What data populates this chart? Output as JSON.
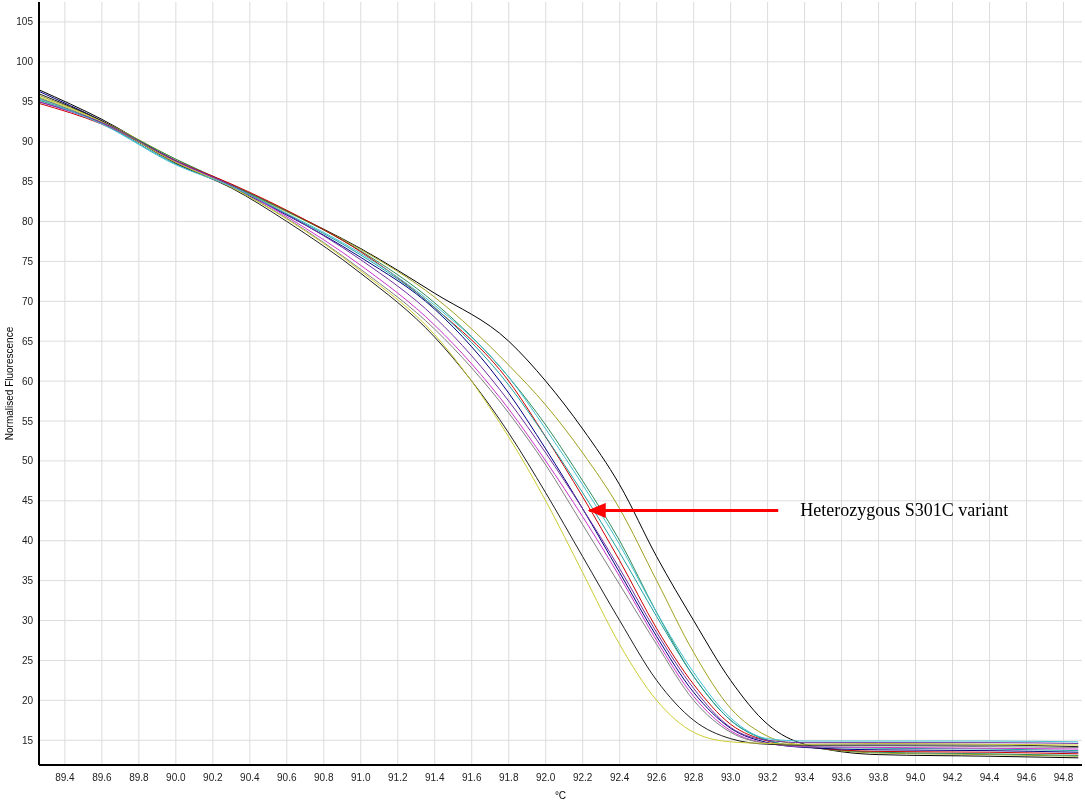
{
  "chart_data": {
    "type": "line",
    "xlabel": "°C",
    "ylabel": "Normalised Fluorescence",
    "x": [
      89.26,
      89.6,
      90.0,
      90.3,
      90.6,
      91.0,
      91.4,
      91.8,
      92.0,
      92.2,
      92.4,
      92.6,
      92.8,
      93.0,
      93.2,
      93.4,
      93.8,
      94.4,
      94.88
    ],
    "series": [
      {
        "color": "#000000",
        "values": [
          96.5,
          92.8,
          87.6,
          84.6,
          81.3,
          76.6,
          71,
          65,
          60,
          54,
          47,
          38,
          30,
          22.5,
          17,
          14.5,
          13.2,
          13.0,
          12.8
        ]
      },
      {
        "color": "#a0a020",
        "values": [
          95.8,
          92.6,
          87.8,
          84.5,
          81.2,
          76.5,
          70.5,
          62,
          57,
          51,
          44,
          35,
          26,
          19,
          15.5,
          14.3,
          13.4,
          13.2,
          13.0
        ]
      },
      {
        "color": "#2e8b57",
        "values": [
          95.2,
          92.4,
          87.8,
          84.6,
          81.3,
          76.3,
          69.8,
          60.5,
          54.5,
          47.5,
          40,
          31,
          23,
          17.5,
          15,
          14.2,
          13.5,
          13.3,
          13.1
        ]
      },
      {
        "color": "#cc0000",
        "values": [
          94.8,
          92.2,
          87.6,
          84.7,
          81.4,
          76.2,
          69.2,
          60,
          53,
          45.5,
          37.5,
          29,
          22,
          17,
          14.9,
          14.2,
          13.6,
          13.5,
          13.3
        ]
      },
      {
        "color": "#000080",
        "values": [
          96.3,
          92.6,
          87.4,
          84.3,
          80.8,
          75.5,
          69,
          58.5,
          51.5,
          44,
          36,
          28,
          21,
          16.5,
          14.7,
          14.1,
          13.8,
          13.7,
          13.5
        ]
      },
      {
        "color": "#20a0a0",
        "values": [
          95.5,
          92.3,
          87.2,
          84.4,
          80.9,
          75.8,
          69.2,
          59.5,
          53,
          46,
          38.5,
          30.5,
          23,
          17.5,
          15,
          14.2,
          14.0,
          13.9,
          13.7
        ]
      },
      {
        "color": "#cc33cc",
        "values": [
          95,
          92.3,
          87.5,
          84.5,
          80.6,
          74.5,
          67,
          56.5,
          50,
          43,
          35.5,
          27.5,
          20.5,
          16.2,
          14.6,
          14.2,
          14.1,
          14.0,
          13.9
        ]
      },
      {
        "color": "#808080",
        "values": [
          95.4,
          92.4,
          87.4,
          84.3,
          80.4,
          74,
          66.5,
          56,
          49.5,
          42,
          34.5,
          27,
          20,
          16,
          14.6,
          14.3,
          14.3,
          14.2,
          14.1
        ]
      },
      {
        "color": "#202020",
        "values": [
          96,
          92.6,
          87.3,
          84.2,
          80,
          73.5,
          65.5,
          53.5,
          46,
          38,
          30,
          22.5,
          17.5,
          15.2,
          14.5,
          14.4,
          14.4,
          14.4,
          14.2
        ]
      },
      {
        "color": "#cccc33",
        "values": [
          95.6,
          92.5,
          87.4,
          84.3,
          80.3,
          73.8,
          65.8,
          53,
          45,
          36,
          27,
          20,
          16,
          14.8,
          14.6,
          14.5,
          14.6,
          14.5,
          14.4
        ]
      },
      {
        "color": "#7030a0",
        "values": [
          95,
          92.4,
          87.6,
          84.5,
          80.9,
          75.2,
          68,
          57.5,
          51,
          44,
          36.5,
          28.5,
          21.5,
          16.6,
          15.0,
          14.7,
          14.7,
          14.7,
          14.6
        ]
      },
      {
        "color": "#40c0d0",
        "values": [
          95.3,
          92.2,
          87.1,
          84.4,
          81,
          76,
          69.5,
          60.5,
          54,
          47,
          39.5,
          31,
          23.5,
          17.8,
          15.2,
          14.9,
          14.9,
          14.9,
          14.8
        ]
      }
    ],
    "xlim": [
      89.26,
      94.9
    ],
    "ylim": [
      11.9,
      107.5
    ],
    "xticks": [
      89.4,
      89.6,
      89.8,
      {
        "value": 90,
        "label": "90.0"
      },
      90.2,
      90.4,
      90.6,
      90.8,
      {
        "value": 91,
        "label": "91.0"
      },
      91.2,
      91.4,
      91.6,
      91.8,
      {
        "value": 92,
        "label": "92.0"
      },
      92.2,
      92.4,
      92.6,
      92.8,
      {
        "value": 93,
        "label": "93.0"
      },
      93.2,
      93.4,
      93.6,
      93.8,
      {
        "value": 94,
        "label": "94.0"
      },
      94.2,
      94.4,
      94.6,
      94.8
    ],
    "yticks": [
      15,
      20,
      25,
      30,
      35,
      40,
      45,
      50,
      55,
      60,
      65,
      70,
      75,
      80,
      85,
      90,
      95,
      100,
      105
    ],
    "grid": true,
    "marker": "none",
    "line_style": "solid",
    "annotations": [
      {
        "text": "Heterozygous S301C variant",
        "x": 92.23,
        "y": 43.8
      }
    ]
  }
}
